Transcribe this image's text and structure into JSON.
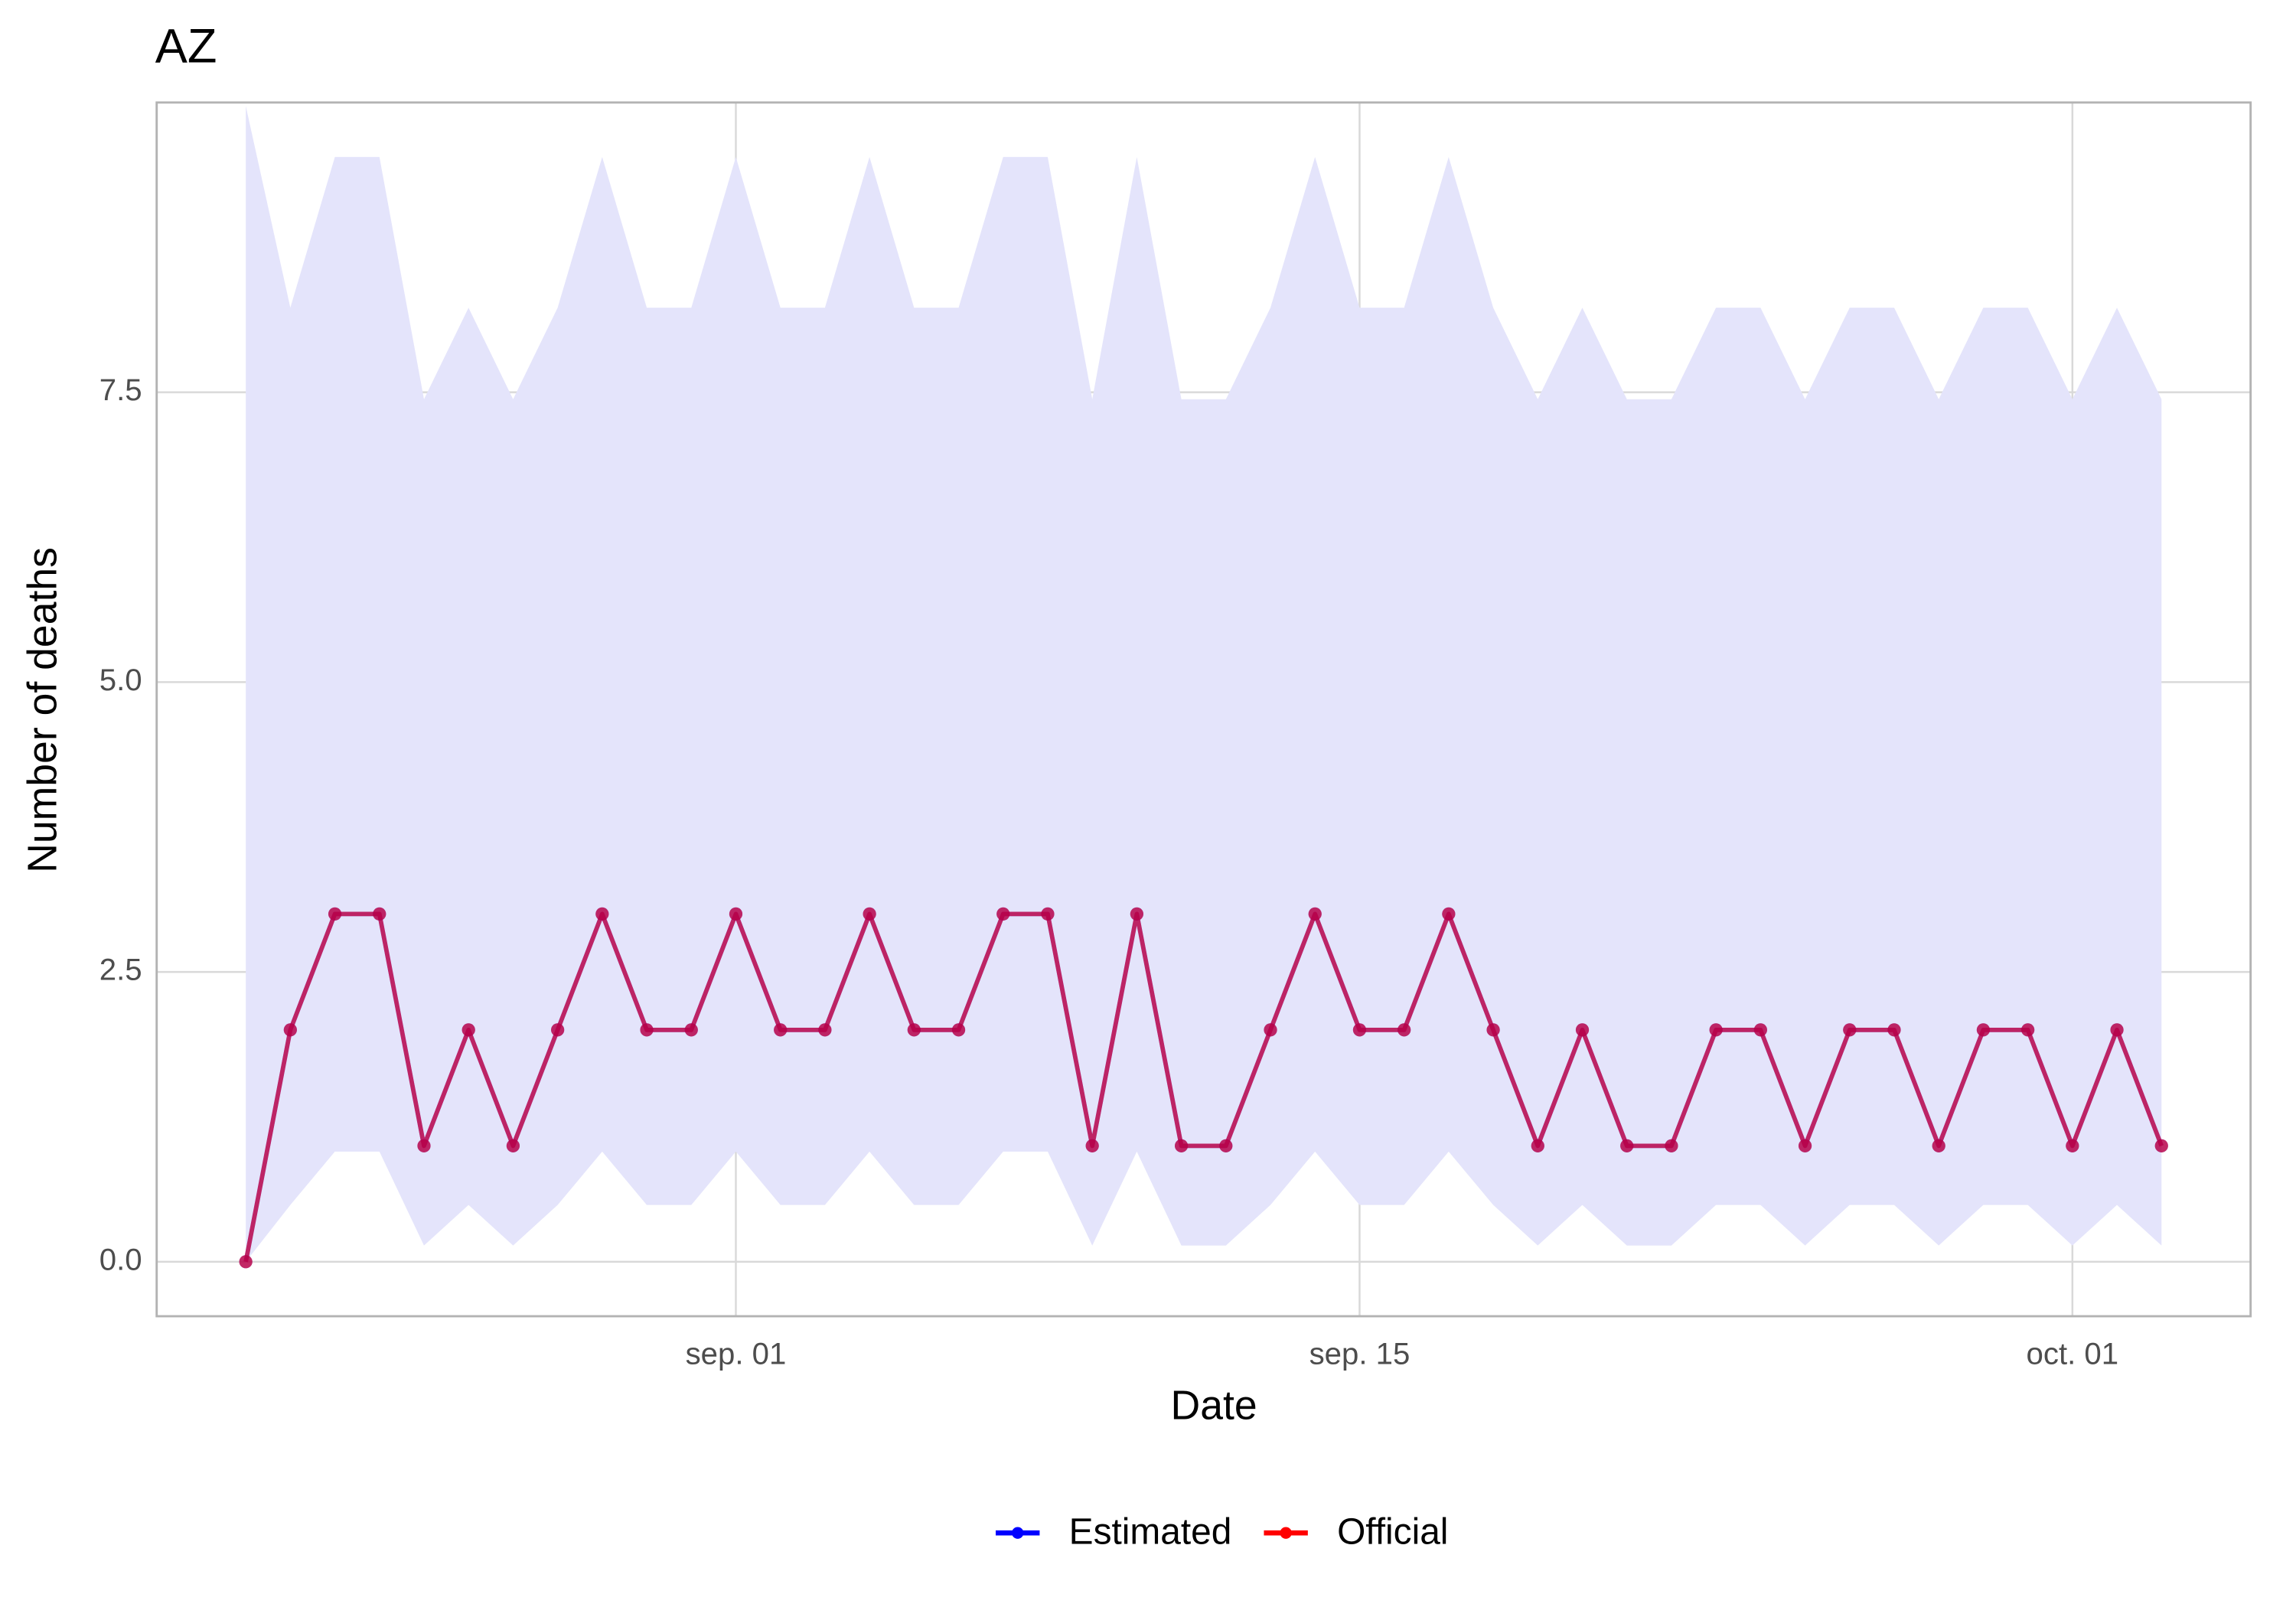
{
  "chart_data": {
    "type": "line",
    "title": "AZ",
    "x_label": "Date",
    "y_label": "Number of deaths",
    "x": [
      "08-21",
      "08-22",
      "08-23",
      "08-24",
      "08-25",
      "08-26",
      "08-27",
      "08-28",
      "08-29",
      "08-30",
      "08-31",
      "09-01",
      "09-02",
      "09-03",
      "09-04",
      "09-05",
      "09-06",
      "09-07",
      "09-08",
      "09-09",
      "09-10",
      "09-11",
      "09-12",
      "09-13",
      "09-14",
      "09-15",
      "09-16",
      "09-17",
      "09-18",
      "09-19",
      "09-20",
      "09-21",
      "09-22",
      "09-23",
      "09-24",
      "09-25",
      "09-26",
      "09-27",
      "09-28",
      "09-29",
      "09-30",
      "10-01",
      "10-02",
      "10-03"
    ],
    "series": [
      {
        "name": "Estimated",
        "color": "#0000ff",
        "values": [
          0,
          2,
          3,
          3,
          1,
          2,
          1,
          2,
          3,
          2,
          2,
          3,
          2,
          2,
          3,
          2,
          2,
          3,
          3,
          1,
          3,
          1,
          1,
          2,
          3,
          2,
          2,
          3,
          2,
          1,
          2,
          1,
          1,
          2,
          2,
          1,
          2,
          2,
          1,
          2,
          2,
          1,
          2,
          1
        ],
        "lower": [
          0,
          0.49,
          0.95,
          0.95,
          0.14,
          0.49,
          0.14,
          0.49,
          0.95,
          0.49,
          0.49,
          0.95,
          0.49,
          0.49,
          0.95,
          0.49,
          0.49,
          0.95,
          0.95,
          0.14,
          0.95,
          0.14,
          0.14,
          0.49,
          0.95,
          0.49,
          0.49,
          0.95,
          0.49,
          0.14,
          0.49,
          0.14,
          0.14,
          0.49,
          0.49,
          0.14,
          0.49,
          0.49,
          0.14,
          0.49,
          0.49,
          0.14,
          0.49,
          0.14
        ],
        "upper": [
          9.97,
          8.23,
          9.53,
          9.53,
          7.44,
          8.23,
          7.44,
          8.23,
          9.53,
          8.23,
          8.23,
          9.53,
          8.23,
          8.23,
          9.53,
          8.23,
          8.23,
          9.53,
          9.53,
          7.44,
          9.53,
          7.44,
          7.44,
          8.23,
          9.53,
          8.23,
          8.23,
          9.53,
          8.23,
          7.44,
          8.23,
          7.44,
          7.44,
          8.23,
          8.23,
          7.44,
          8.23,
          8.23,
          7.44,
          8.23,
          8.23,
          7.44,
          8.23,
          7.44
        ],
        "band_color": "#e4e4fb"
      },
      {
        "name": "Official",
        "color": "#ff0000",
        "values": [
          0,
          2,
          3,
          3,
          1,
          2,
          1,
          2,
          3,
          2,
          2,
          3,
          2,
          2,
          3,
          2,
          2,
          3,
          3,
          1,
          3,
          1,
          1,
          2,
          3,
          2,
          2,
          3,
          2,
          1,
          2,
          1,
          1,
          2,
          2,
          1,
          2,
          2,
          1,
          2,
          2,
          1,
          2,
          1
        ]
      }
    ],
    "xlim": [
      "08-19",
      "10-05"
    ],
    "xticks": [
      {
        "value": "09-01",
        "label": "sep. 01"
      },
      {
        "value": "09-15",
        "label": "sep. 15"
      },
      {
        "value": "10-01",
        "label": "oct. 01"
      }
    ],
    "ylim": [
      -0.47,
      10.0
    ],
    "yticks": [
      {
        "value": 0,
        "label": "0.0"
      },
      2.5,
      {
        "value": 5,
        "label": "5.0"
      },
      7.5
    ],
    "grid": true,
    "legend": "bottom"
  }
}
